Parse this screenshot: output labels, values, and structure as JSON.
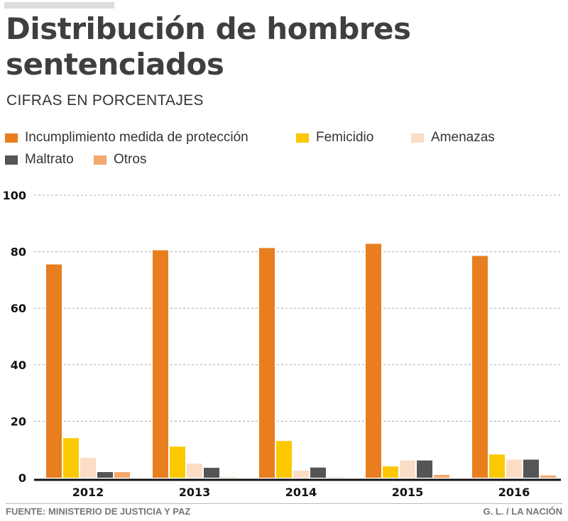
{
  "header": {
    "title_line1": "Distribución de hombres",
    "title_line2": "sentenciados",
    "subtitle": "CIFRAS EN PORCENTAJES"
  },
  "colors": {
    "incumplimiento": "#e87e1e",
    "femicidio": "#fcc800",
    "amenazas": "#fbdcc4",
    "maltrato": "#555555",
    "otros": "#f4a86c",
    "axis": "#111111",
    "grid": "#aaaaaa"
  },
  "footer": {
    "source": "FUENTE: MINISTERIO DE JUSTICIA Y PAZ",
    "credit": "G. L. / LA NACIÓN"
  },
  "chart_data": {
    "type": "bar",
    "title": "Distribución de hombres sentenciados",
    "subtitle": "CIFRAS EN PORCENTAJES",
    "xlabel": "",
    "ylabel": "",
    "ylim": [
      0,
      100
    ],
    "yticks": [
      0,
      20,
      40,
      60,
      80,
      100
    ],
    "grid": true,
    "legend_position": "top-left",
    "categories": [
      "2012",
      "2013",
      "2014",
      "2015",
      "2016"
    ],
    "series": [
      {
        "name": "Incumplimiento medida de protección",
        "color_key": "incumplimiento",
        "values": [
          75.5,
          80.5,
          81.3,
          82.8,
          78.5
        ]
      },
      {
        "name": "Femicidio",
        "color_key": "femicidio",
        "values": [
          14.0,
          11.0,
          13.0,
          4.0,
          8.2
        ]
      },
      {
        "name": "Amenazas",
        "color_key": "amenazas",
        "values": [
          7.0,
          5.0,
          2.5,
          6.1,
          6.4
        ]
      },
      {
        "name": "Maltrato",
        "color_key": "maltrato",
        "values": [
          2.0,
          3.5,
          3.6,
          6.1,
          6.4
        ]
      },
      {
        "name": "Otros",
        "color_key": "otros",
        "values": [
          2.0,
          0.1,
          0.1,
          1.0,
          0.8
        ]
      }
    ]
  }
}
